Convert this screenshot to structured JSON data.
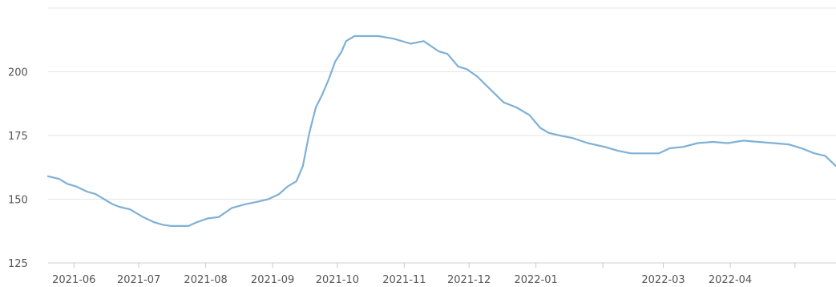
{
  "chart_data": {
    "type": "line",
    "title": "",
    "xlabel": "",
    "ylabel": "",
    "ylim": [
      125,
      225
    ],
    "yticks": [
      125,
      150,
      175,
      200
    ],
    "grid": "horizontal",
    "legend": "none",
    "color": "#7fb0d6",
    "xticks": [
      "2021-06",
      "2021-07",
      "2021-08",
      "2021-09",
      "2021-10",
      "2021-11",
      "2021-12",
      "2022-01",
      "2022-02",
      "2022-03",
      "2022-04",
      "2022-05"
    ],
    "xtick_labels": [
      "2021-06",
      "2021-07",
      "2021-08",
      "2021-09",
      "2021-10",
      "2021-11",
      "2021-12",
      "2022-01",
      "",
      "2022-03",
      "2022-04",
      ""
    ],
    "series": [
      {
        "x": [
          "2021-05-20",
          "2021-05-25",
          "2021-05-29",
          "2021-06-02",
          "2021-06-07",
          "2021-06-11",
          "2021-06-15",
          "2021-06-19",
          "2021-06-22",
          "2021-06-27",
          "2021-07-03",
          "2021-07-08",
          "2021-07-12",
          "2021-07-16",
          "2021-07-20",
          "2021-07-24",
          "2021-07-28",
          "2021-08-02",
          "2021-08-07",
          "2021-08-13",
          "2021-08-19",
          "2021-08-25",
          "2021-08-30",
          "2021-09-04",
          "2021-09-08",
          "2021-09-12",
          "2021-09-15",
          "2021-09-18",
          "2021-09-21",
          "2021-09-24",
          "2021-09-27",
          "2021-09-30",
          "2021-10-03",
          "2021-10-05",
          "2021-10-07",
          "2021-10-09",
          "2021-10-13",
          "2021-10-20",
          "2021-10-27",
          "2021-11-04",
          "2021-11-10",
          "2021-11-17",
          "2021-11-21",
          "2021-11-26",
          "2021-11-30",
          "2021-12-05",
          "2021-12-11",
          "2021-12-17",
          "2021-12-23",
          "2021-12-29",
          "2022-01-03",
          "2022-01-07",
          "2022-01-12",
          "2022-01-18",
          "2022-01-25",
          "2022-02-02",
          "2022-02-08",
          "2022-02-14",
          "2022-02-20",
          "2022-02-27",
          "2022-03-04",
          "2022-03-10",
          "2022-03-17",
          "2022-03-24",
          "2022-03-31",
          "2022-04-07",
          "2022-04-14",
          "2022-04-21",
          "2022-04-28",
          "2022-05-04",
          "2022-05-10",
          "2022-05-15",
          "2022-05-20"
        ],
        "y": [
          159,
          158,
          156,
          155,
          153,
          152,
          150,
          148,
          147,
          146,
          143,
          141,
          140,
          139.5,
          139.5,
          139.5,
          141,
          142.5,
          143,
          146.5,
          148,
          149,
          150,
          152,
          155,
          157,
          163,
          176,
          186,
          191,
          197,
          204,
          208,
          212,
          213,
          214,
          214,
          214,
          213,
          211,
          212,
          208,
          207,
          202,
          201,
          198,
          193,
          188,
          186,
          183,
          178,
          176,
          175,
          174,
          172,
          170.5,
          169,
          168,
          168,
          168,
          170,
          170.5,
          172,
          172.5,
          172,
          173,
          172.5,
          172,
          171.5,
          170,
          168,
          167,
          163
        ]
      }
    ]
  }
}
